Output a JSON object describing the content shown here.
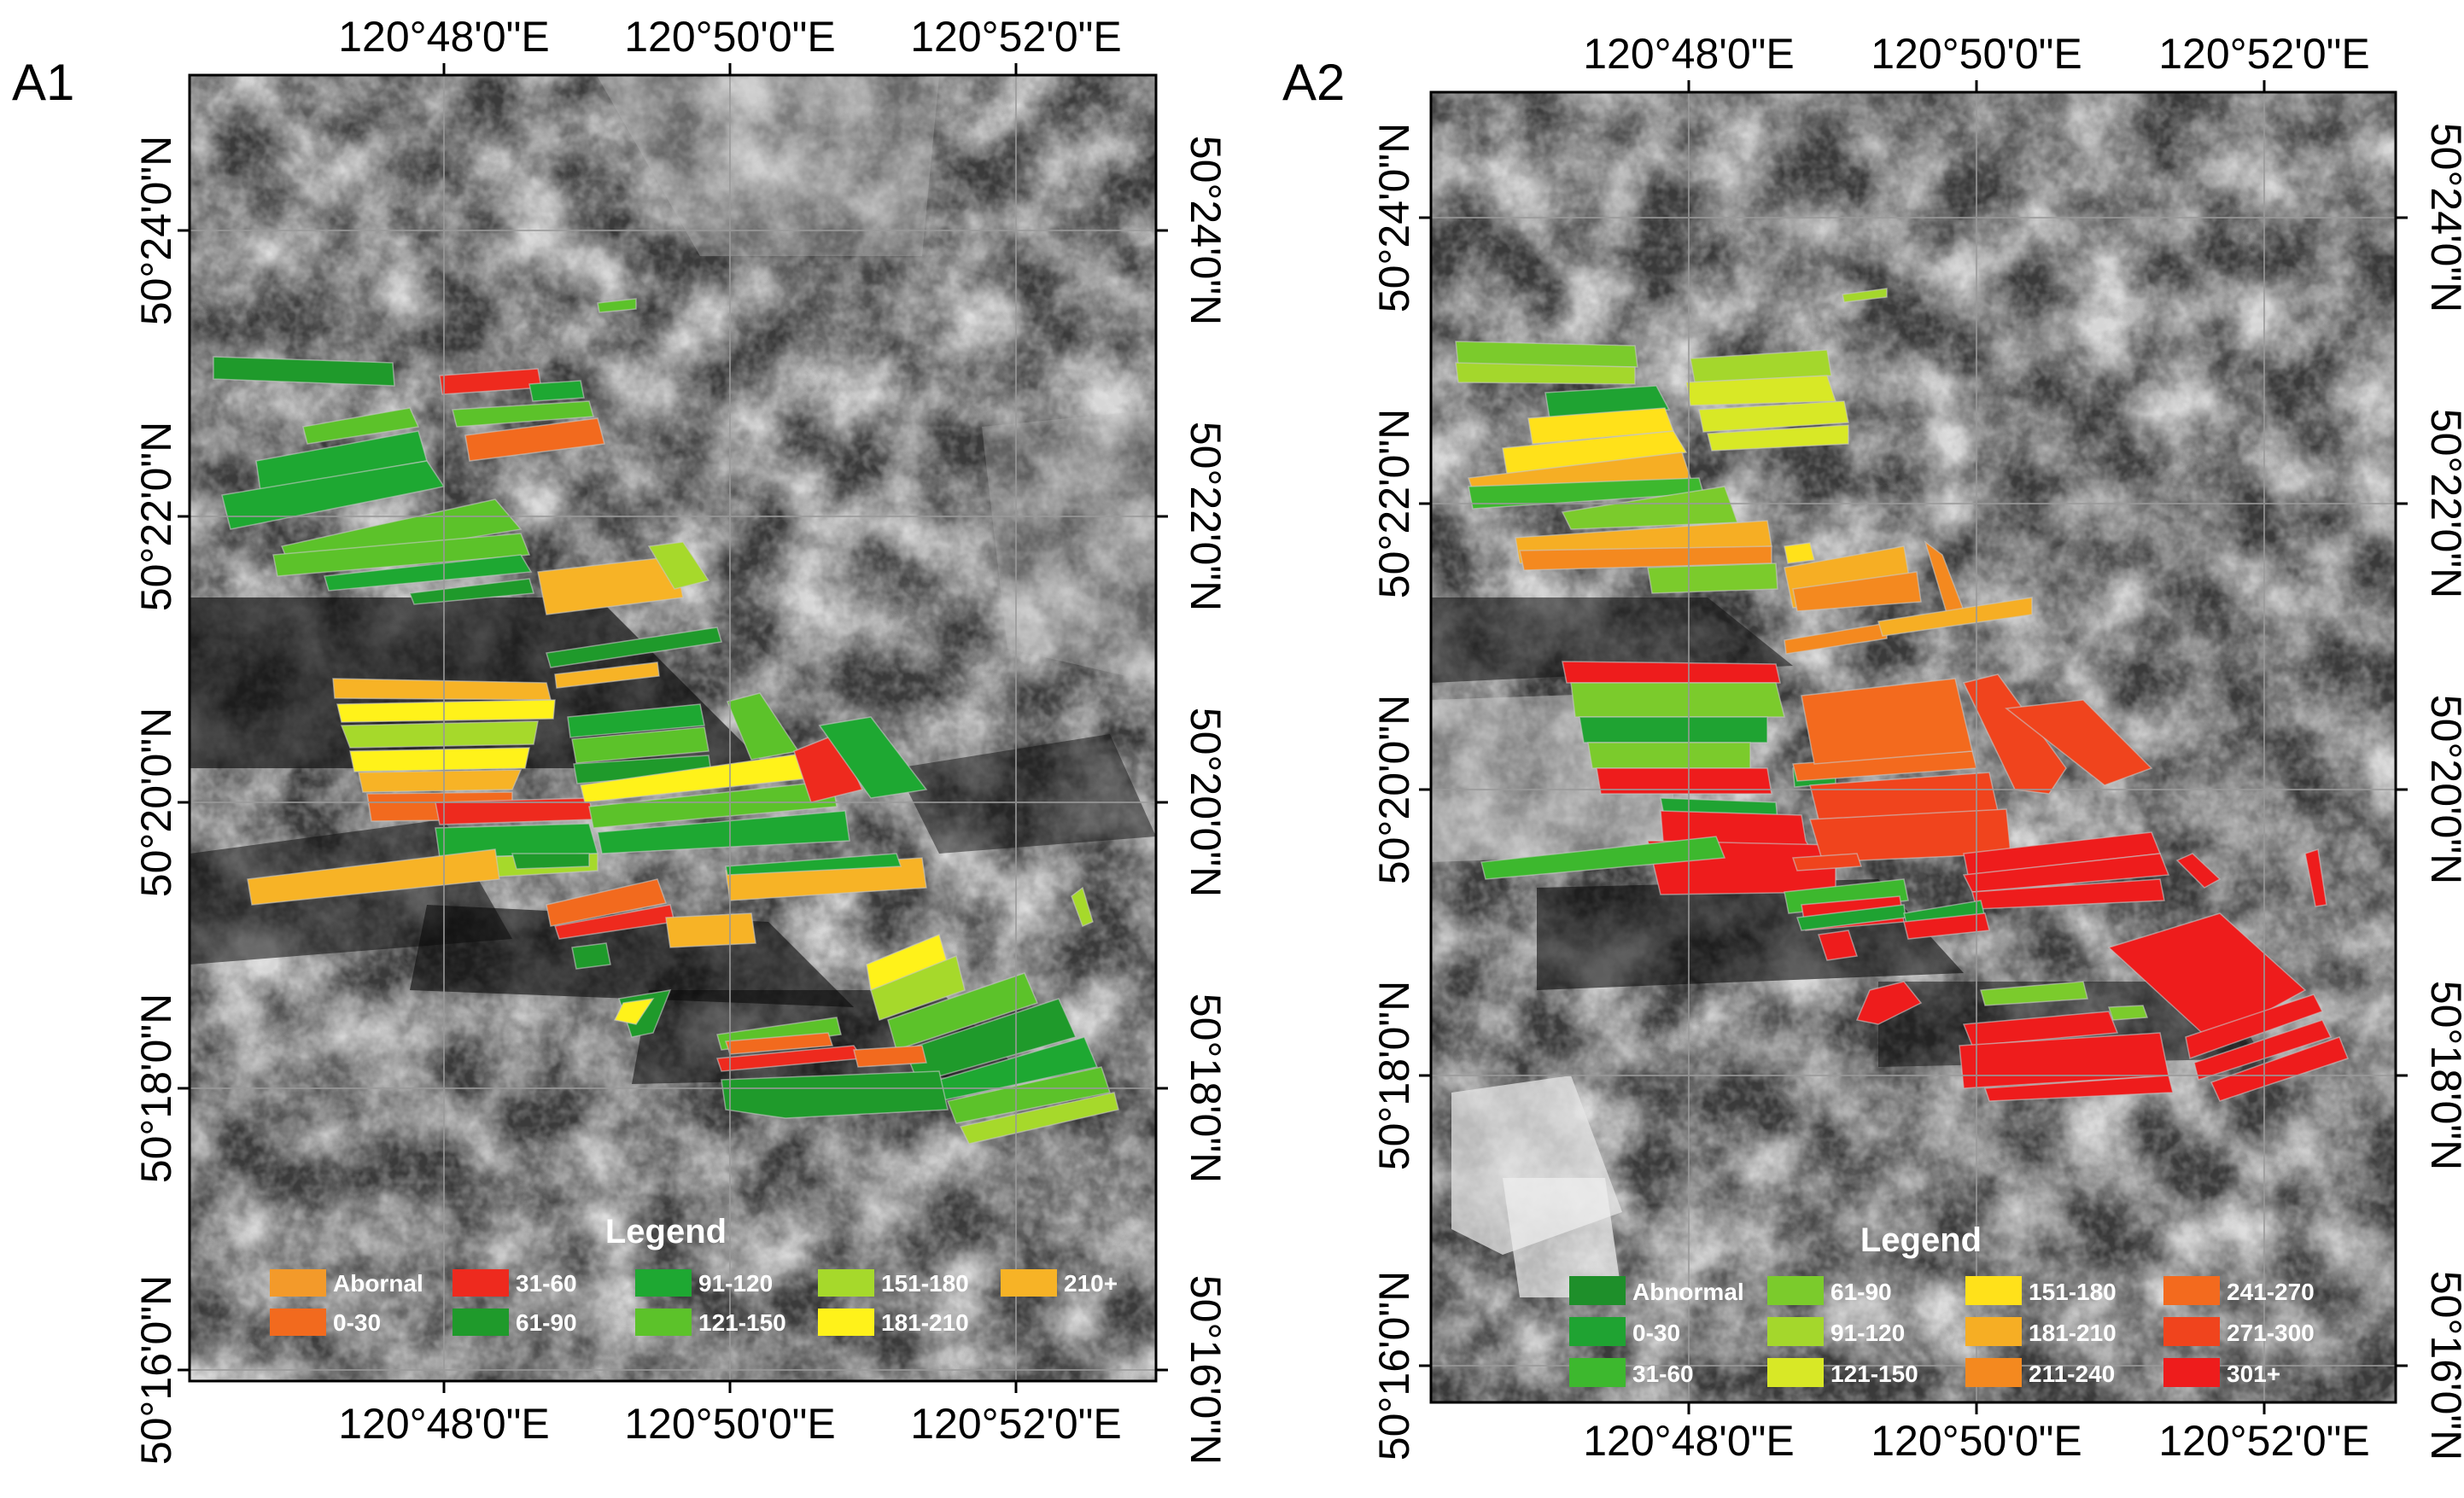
{
  "panels": [
    {
      "id": "A1",
      "label": "A1",
      "lon_ticks": [
        "120°48'0\"E",
        "120°50'0\"E",
        "120°52'0\"E"
      ],
      "lat_ticks": [
        "50°24'0\"N",
        "50°22'0\"N",
        "50°20'0\"N",
        "50°18'0\"N",
        "50°16'0\"N"
      ],
      "legend": {
        "title": "Legend",
        "items": [
          {
            "label": "Abornal",
            "color": "#F39A2A"
          },
          {
            "label": "0-30",
            "color": "#F26A1E"
          },
          {
            "label": "31-60",
            "color": "#EE2A1E"
          },
          {
            "label": "61-90",
            "color": "#1F9A2B"
          },
          {
            "label": "91-120",
            "color": "#1EA832"
          },
          {
            "label": "121-150",
            "color": "#5CC22A"
          },
          {
            "label": "151-180",
            "color": "#A6D92B"
          },
          {
            "label": "181-210",
            "color": "#FFF21A"
          },
          {
            "label": "210+",
            "color": "#F7B326"
          }
        ]
      }
    },
    {
      "id": "A2",
      "label": "A2",
      "lon_ticks": [
        "120°48'0\"E",
        "120°50'0\"E",
        "120°52'0\"E"
      ],
      "lat_ticks": [
        "50°24'0\"N",
        "50°22'0\"N",
        "50°20'0\"N",
        "50°18'0\"N",
        "50°16'0\"N"
      ],
      "legend": {
        "title": "Legend",
        "items": [
          {
            "label": "Abnormal",
            "color": "#1E8F2A"
          },
          {
            "label": "0-30",
            "color": "#1FA332"
          },
          {
            "label": "31-60",
            "color": "#3DB82E"
          },
          {
            "label": "61-90",
            "color": "#7BCB2C"
          },
          {
            "label": "91-120",
            "color": "#A4D72C"
          },
          {
            "label": "121-150",
            "color": "#D8E826"
          },
          {
            "label": "151-180",
            "color": "#FFE11A"
          },
          {
            "label": "181-210",
            "color": "#F6AE24"
          },
          {
            "label": "211-240",
            "color": "#F4891F"
          },
          {
            "label": "241-270",
            "color": "#F36A1E"
          },
          {
            "label": "271-300",
            "color": "#F0441D"
          },
          {
            "label": "301+",
            "color": "#EE1C1C"
          }
        ]
      }
    }
  ]
}
